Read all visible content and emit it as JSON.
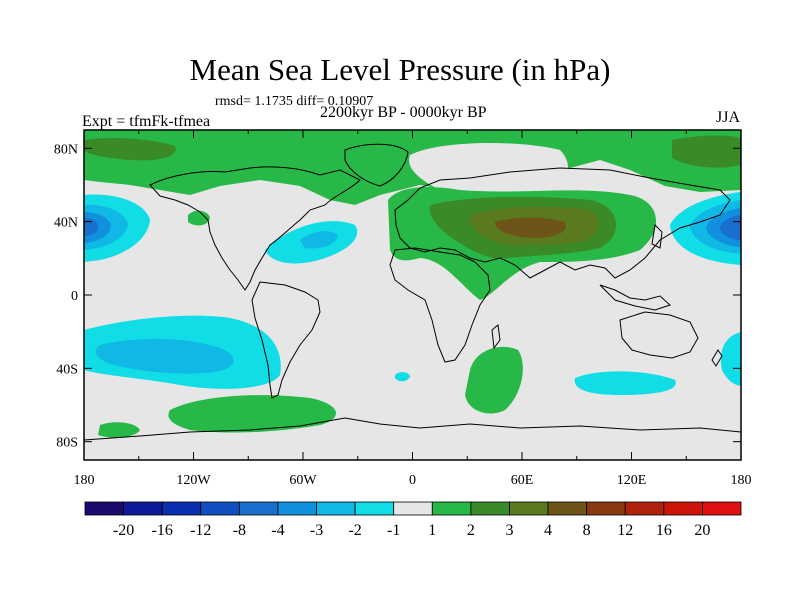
{
  "title": "Mean Sea Level Pressure (in hPa)",
  "stats": "rmsd= 1.1735 diff= 0.10907",
  "experiment": "Expt = tfmFk-tfmea",
  "period": "2200kyr BP - 0000kyr BP",
  "season": "JJA",
  "lat_ticks": [
    "80N",
    "40N",
    "0",
    "40S",
    "80S"
  ],
  "lon_ticks": [
    "180",
    "120W",
    "60W",
    "0",
    "60E",
    "120E",
    "180"
  ],
  "colorbar": {
    "labels": [
      "-20",
      "-16",
      "-12",
      "-8",
      "-4",
      "-3",
      "-2",
      "-1",
      "1",
      "2",
      "3",
      "4",
      "8",
      "12",
      "16",
      "20"
    ],
    "colors": [
      "#1a0a6e",
      "#0d1a9a",
      "#0a2fb0",
      "#0f4fc0",
      "#1a6fcc",
      "#1090dd",
      "#10b8e6",
      "#10dde6",
      "#e6e6e6",
      "#28b848",
      "#3a8a28",
      "#5a7a1e",
      "#6e5418",
      "#8a3a12",
      "#b0220c",
      "#cc1408",
      "#e01010"
    ]
  },
  "colors": {
    "background": "#e6e6e6",
    "green": "#28b848",
    "dark_green": "#3a8a28",
    "olive": "#5a7a1e",
    "cyan": "#10dde6",
    "mid_blue": "#10b8e6",
    "blue": "#1090dd",
    "deep_blue": "#1a6fcc",
    "coast": "#000000"
  }
}
